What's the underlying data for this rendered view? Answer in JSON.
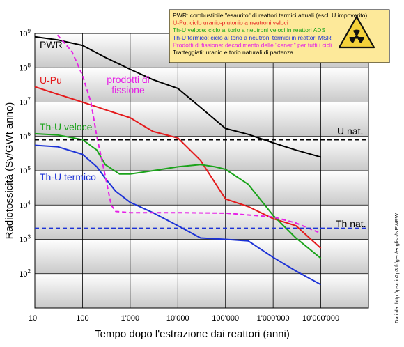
{
  "chart_data": {
    "type": "line",
    "xlabel": "Tempo dopo l'estrazione dai reattori (anni)",
    "ylabel": "Radiotossicità (Sv/GWt anno)",
    "x_scale": "log",
    "y_scale": "log",
    "xlim": [
      10,
      100000000
    ],
    "ylim": [
      10,
      1000000000
    ],
    "x_ticks": [
      {
        "value": 10,
        "label": "10"
      },
      {
        "value": 100,
        "label": "100"
      },
      {
        "value": 1000,
        "label": "1'000"
      },
      {
        "value": 10000,
        "label": "10'000"
      },
      {
        "value": 100000,
        "label": "100'000"
      },
      {
        "value": 1000000,
        "label": "1'000'000"
      },
      {
        "value": 10000000,
        "label": "10'000'000"
      }
    ],
    "y_ticks": [
      {
        "value": 100,
        "base": "10",
        "exp": "2"
      },
      {
        "value": 1000,
        "base": "10",
        "exp": "3"
      },
      {
        "value": 10000,
        "base": "10",
        "exp": "4"
      },
      {
        "value": 100000,
        "base": "10",
        "exp": "5"
      },
      {
        "value": 1000000,
        "base": "10",
        "exp": "6"
      },
      {
        "value": 10000000,
        "base": "10",
        "exp": "7"
      },
      {
        "value": 100000000,
        "base": "10",
        "exp": "8"
      },
      {
        "value": 1000000000,
        "base": "10",
        "exp": "9"
      }
    ],
    "grid": true,
    "series": [
      {
        "name": "PWR",
        "color": "#000000",
        "dashed": false,
        "label_lines": [
          "PWR"
        ],
        "points": [
          [
            10,
            800000000
          ],
          [
            30,
            650000000
          ],
          [
            100,
            450000000
          ],
          [
            300,
            200000000
          ],
          [
            1000,
            90000000
          ],
          [
            3000,
            45000000
          ],
          [
            10000,
            25000000
          ],
          [
            30000,
            7000000
          ],
          [
            100000,
            1700000
          ],
          [
            300000,
            1150000
          ],
          [
            1000000,
            650000
          ],
          [
            3000000,
            400000
          ],
          [
            10000000,
            250000
          ]
        ]
      },
      {
        "name": "U-Pu",
        "color": "#e41a1c",
        "dashed": false,
        "label_lines": [
          "U-Pu"
        ],
        "points": [
          [
            10,
            28000000
          ],
          [
            30,
            17000000
          ],
          [
            100,
            10000000
          ],
          [
            300,
            6000000
          ],
          [
            1000,
            3500000
          ],
          [
            3000,
            1400000
          ],
          [
            10000,
            900000
          ],
          [
            30000,
            200000
          ],
          [
            100000,
            15000
          ],
          [
            300000,
            9000
          ],
          [
            1000000,
            4000
          ],
          [
            3000000,
            2500
          ],
          [
            10000000,
            550
          ]
        ]
      },
      {
        "name": "Th-U veloce",
        "color": "#1aa31a",
        "dashed": false,
        "label_lines": [
          "Th-U veloce"
        ],
        "points": [
          [
            10,
            1200000
          ],
          [
            30,
            1100000
          ],
          [
            100,
            800000
          ],
          [
            200,
            400000
          ],
          [
            300,
            150000
          ],
          [
            600,
            80000
          ],
          [
            1000,
            80000
          ],
          [
            3000,
            100000
          ],
          [
            10000,
            130000
          ],
          [
            30000,
            150000
          ],
          [
            60000,
            130000
          ],
          [
            100000,
            110000
          ],
          [
            300000,
            40000
          ],
          [
            1000000,
            5000
          ],
          [
            3000000,
            1100
          ],
          [
            10000000,
            280
          ]
        ]
      },
      {
        "name": "Th-U termico",
        "color": "#1c32d6",
        "dashed": false,
        "label_lines": [
          "Th-U termico"
        ],
        "points": [
          [
            10,
            550000
          ],
          [
            30,
            500000
          ],
          [
            100,
            300000
          ],
          [
            200,
            130000
          ],
          [
            300,
            60000
          ],
          [
            500,
            25000
          ],
          [
            1000,
            12000
          ],
          [
            3000,
            6000
          ],
          [
            10000,
            2500
          ],
          [
            30000,
            1100
          ],
          [
            100000,
            1000
          ],
          [
            300000,
            900
          ],
          [
            1000000,
            300
          ],
          [
            3000000,
            120
          ],
          [
            10000000,
            48
          ]
        ]
      },
      {
        "name": "prodotti di fissione",
        "color": "#e621e6",
        "dashed": true,
        "label_lines": [
          "prodotti di",
          "fissione"
        ],
        "points": [
          [
            30,
            900000000
          ],
          [
            60,
            300000000
          ],
          [
            100,
            60000000
          ],
          [
            150,
            10000000
          ],
          [
            200,
            1000000
          ],
          [
            300,
            70000
          ],
          [
            400,
            10000
          ],
          [
            500,
            6500
          ],
          [
            1000,
            6000
          ],
          [
            10000,
            6000
          ],
          [
            100000,
            5800
          ],
          [
            1000000,
            4500
          ],
          [
            3000000,
            3000
          ],
          [
            10000000,
            1500
          ]
        ]
      },
      {
        "name": "U nat.",
        "color": "#000000",
        "dashed": true,
        "label_lines": [
          "U nat."
        ],
        "points": [
          [
            10,
            800000
          ],
          [
            100000000,
            800000
          ]
        ]
      },
      {
        "name": "Th nat.",
        "color": "#1c32d6",
        "dashed": true,
        "label_lines": [
          "Th nat."
        ],
        "points": [
          [
            10,
            2100
          ],
          [
            100000000,
            2100
          ]
        ]
      }
    ],
    "legend": {
      "position": "top-right",
      "background": "#fde99a",
      "entries": [
        {
          "text": "PWR: combustibile \"esaurito\" di reattori termici attuali (escl. U impoverito)",
          "color": "#000000"
        },
        {
          "text": "U-Pu: ciclo uranio-plutonio a neutroni veloci",
          "color": "#e41a1c"
        },
        {
          "text": "Th-U veloce: ciclo al torio a neutroni veloci in reattori ADS",
          "color": "#1aa31a"
        },
        {
          "text": "Th-U termico: ciclo al torio a neutroni termici in reattori MSR",
          "color": "#1c32d6"
        },
        {
          "text": "Prodotti di fissione: decadimento delle \"ceneri\" per tutti i cicli",
          "color": "#e621e6"
        },
        {
          "text": "Tratteggiati: uranio e torio naturali di partenza",
          "color": "#000000"
        }
      ]
    },
    "credit": "Dati da: http://psc.in2p3.fr/gen/english/NEWRW",
    "colors": {
      "band_light": "#ffffff",
      "band_dark": "#c9c9c9",
      "legend_bg": "#fde99a",
      "legend_border": "#000000"
    }
  }
}
